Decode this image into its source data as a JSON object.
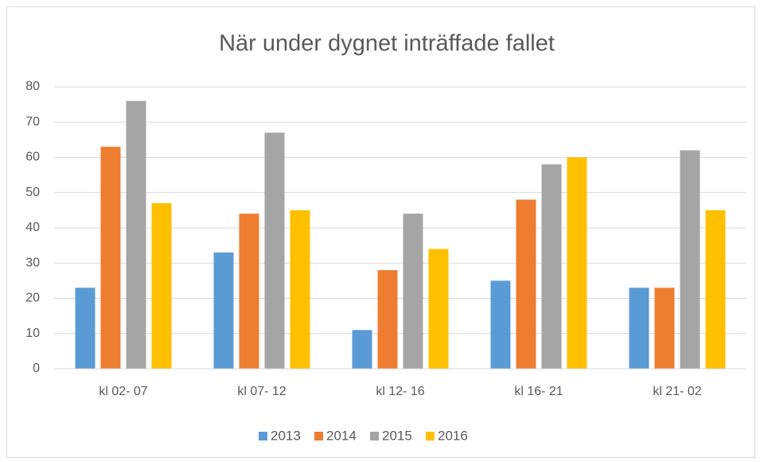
{
  "chart_data": {
    "type": "bar",
    "title": "När under dygnet inträffade fallet",
    "categories": [
      "kl 02- 07",
      "kl 07- 12",
      "kl 12- 16",
      "kl 16- 21",
      "kl 21- 02"
    ],
    "series": [
      {
        "name": "2013",
        "color": "#5b9bd5",
        "values": [
          23,
          33,
          11,
          25,
          23
        ]
      },
      {
        "name": "2014",
        "color": "#ed7d31",
        "values": [
          63,
          44,
          28,
          48,
          23
        ]
      },
      {
        "name": "2015",
        "color": "#a5a5a5",
        "values": [
          76,
          67,
          44,
          58,
          62
        ]
      },
      {
        "name": "2016",
        "color": "#ffc000",
        "values": [
          47,
          45,
          34,
          60,
          45
        ]
      }
    ],
    "ylim": [
      0,
      80
    ],
    "yticks": [
      0,
      10,
      20,
      30,
      40,
      50,
      60,
      70,
      80
    ],
    "grid": true,
    "legend": "bottom"
  }
}
